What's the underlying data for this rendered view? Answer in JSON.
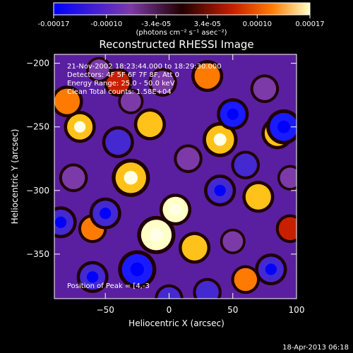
{
  "colorbar": {
    "ticks": [
      "-0.00017",
      "-0.00010",
      "-3.4e-05",
      "3.4e-05",
      "0.00010",
      "0.00017"
    ],
    "tick_values": [
      -0.00017,
      -0.0001,
      -3.4e-05,
      3.4e-05,
      0.0001,
      0.00017
    ],
    "range": [
      -0.00017,
      0.00017
    ],
    "units": "(photons cm⁻² s⁻¹ asec⁻²)",
    "colors": [
      "#0000ff",
      "#7c3aa8",
      "#200000",
      "#c81f00",
      "#ff7a00",
      "#ffffc8"
    ]
  },
  "chart_data": {
    "type": "heatmap",
    "title": "Reconstructed RHESSI Image",
    "xlabel": "Heliocentric X (arcsec)",
    "ylabel": "Heliocentric Y (arcsec)",
    "xlim": [
      -90,
      100
    ],
    "ylim": [
      -385,
      -193
    ],
    "xticks": [
      -50,
      0,
      50,
      100
    ],
    "yticks": [
      -200,
      -250,
      -300,
      -350
    ],
    "xtick_labels": [
      "−50",
      "0",
      "50",
      "100"
    ],
    "ytick_labels": [
      "−200",
      "−250",
      "−300",
      "−350"
    ],
    "annotations": [
      "21-Nov-2002 18:23:44.000 to 18:29:30.000",
      "Detectors: 4F 5F 6F 7F 8F, Att 0",
      "Energy Range: 25.0 - 50.0 keV",
      "Clean     Total counts: 1.58E+04"
    ],
    "peak_label": "Position of Peak = [4,-3",
    "blobs": [
      [
        -10,
        -335,
        1.0,
        12
      ],
      [
        5,
        -315,
        1.0,
        10
      ],
      [
        -30,
        -290,
        0.9,
        12
      ],
      [
        40,
        -260,
        0.9,
        11
      ],
      [
        85,
        -255,
        0.9,
        10
      ],
      [
        -70,
        -250,
        0.9,
        10
      ],
      [
        -15,
        -248,
        0.8,
        10
      ],
      [
        20,
        -345,
        0.8,
        10
      ],
      [
        70,
        -305,
        0.8,
        10
      ],
      [
        -80,
        -230,
        0.7,
        10
      ],
      [
        30,
        -210,
        0.7,
        10
      ],
      [
        -60,
        -330,
        0.7,
        9
      ],
      [
        60,
        -370,
        0.7,
        9
      ],
      [
        -40,
        -215,
        0.6,
        9
      ],
      [
        95,
        -330,
        0.6,
        9
      ],
      [
        90,
        -250,
        -1.0,
        11
      ],
      [
        50,
        -240,
        -1.0,
        10
      ],
      [
        -25,
        -362,
        -1.0,
        12
      ],
      [
        -50,
        -318,
        -0.9,
        10
      ],
      [
        40,
        -300,
        -0.9,
        10
      ],
      [
        -85,
        -325,
        -0.9,
        10
      ],
      [
        -40,
        -262,
        -0.8,
        10
      ],
      [
        80,
        -362,
        -0.9,
        10
      ],
      [
        -60,
        -368,
        -0.9,
        10
      ],
      [
        60,
        -280,
        -0.8,
        9
      ],
      [
        -5,
        -215,
        -0.7,
        9
      ],
      [
        15,
        -275,
        -0.7,
        9
      ],
      [
        -75,
        -290,
        -0.7,
        9
      ],
      [
        30,
        -380,
        -0.8,
        9
      ],
      [
        0,
        -385,
        -0.8,
        9
      ],
      [
        75,
        -220,
        -0.6,
        9
      ],
      [
        -30,
        -230,
        -0.6,
        8
      ],
      [
        50,
        -340,
        -0.7,
        8
      ],
      [
        -55,
        -205,
        -0.5,
        8
      ],
      [
        95,
        -290,
        -0.6,
        8
      ]
    ]
  },
  "footer": {
    "timestamp": "18-Apr-2013 06:18"
  }
}
